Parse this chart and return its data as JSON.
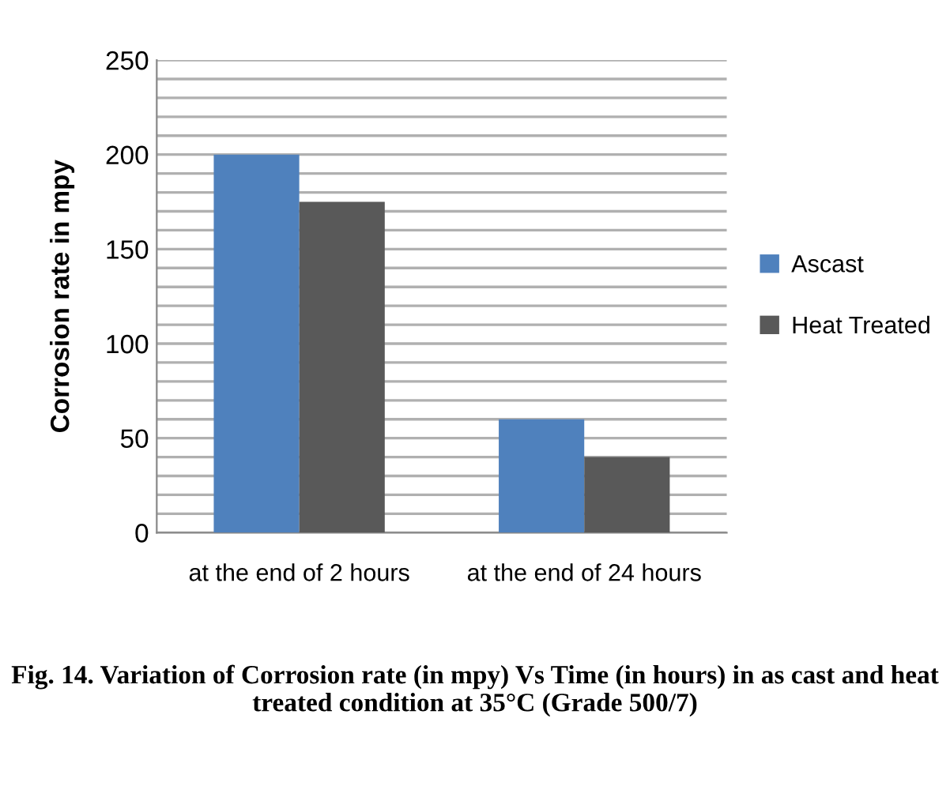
{
  "chart_data": {
    "type": "bar",
    "ylabel": "Corrosion rate in mpy",
    "categories": [
      "at the end of 2 hours",
      "at the end of 24 hours"
    ],
    "series": [
      {
        "name": "Ascast",
        "color": "#4f81bd",
        "values": [
          200,
          60
        ]
      },
      {
        "name": "Heat Treated",
        "color": "#595959",
        "values": [
          175,
          40
        ]
      }
    ],
    "ylim": [
      0,
      250
    ],
    "yticks": [
      0,
      {
        "value": 10,
        "label": null
      },
      {
        "value": 20,
        "label": null
      },
      {
        "value": 30,
        "label": null
      },
      {
        "value": 40,
        "label": null
      },
      50,
      {
        "value": 60,
        "label": null
      },
      {
        "value": 70,
        "label": null
      },
      {
        "value": 80,
        "label": null
      },
      {
        "value": 90,
        "label": null
      },
      100,
      {
        "value": 110,
        "label": null
      },
      {
        "value": 120,
        "label": null
      },
      {
        "value": 130,
        "label": null
      },
      {
        "value": 140,
        "label": null
      },
      150,
      {
        "value": 160,
        "label": null
      },
      {
        "value": 170,
        "label": null
      },
      {
        "value": 180,
        "label": null
      },
      {
        "value": 190,
        "label": null
      },
      200,
      {
        "value": 210,
        "label": null
      },
      {
        "value": 220,
        "label": null
      },
      {
        "value": 230,
        "label": null
      },
      {
        "value": 240,
        "label": null
      },
      250
    ],
    "grid": "y",
    "legend": "right",
    "annotations": [
      "Fig. 14. Variation of Corrosion rate (in mpy) Vs Time (in hours) in as cast and heat treated condition at 35°C (Grade 500/7)"
    ]
  }
}
